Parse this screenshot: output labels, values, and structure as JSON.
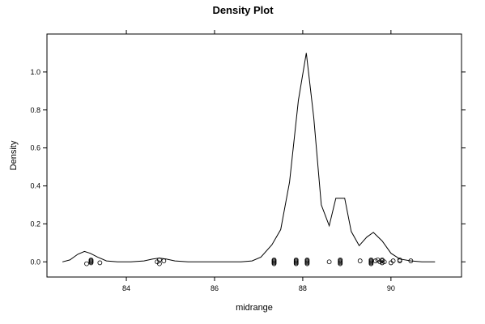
{
  "chart_data": {
    "type": "line",
    "title": "Density Plot",
    "xlabel": "midrange",
    "ylabel": "Density",
    "xlim": [
      82.2,
      91.6
    ],
    "ylim": [
      -0.08,
      1.2
    ],
    "x_ticks": [
      84,
      86,
      88,
      90
    ],
    "y_ticks": [
      0.0,
      0.2,
      0.4,
      0.6,
      0.8,
      1.0
    ],
    "x_tick_labels": [
      "84",
      "86",
      "88",
      "90"
    ],
    "y_tick_labels": [
      "0.0",
      "0.2",
      "0.4",
      "0.6",
      "0.8",
      "1.0"
    ],
    "grid": false,
    "line_color": "#000000",
    "series": [
      {
        "x": [
          82.55,
          82.72,
          82.9,
          83.05,
          83.18,
          83.35,
          83.55,
          83.8,
          84.1,
          84.4,
          84.6,
          84.75,
          84.9,
          85.1,
          85.4,
          85.8,
          86.2,
          86.6,
          86.85,
          87.05,
          87.3,
          87.5,
          87.7,
          87.9,
          88.08,
          88.25,
          88.42,
          88.6,
          88.75,
          88.95,
          89.1,
          89.28,
          89.45,
          89.6,
          89.8,
          90.0,
          90.2,
          90.45,
          90.7,
          91.0
        ],
        "y": [
          0.0,
          0.01,
          0.04,
          0.055,
          0.045,
          0.025,
          0.005,
          0.0,
          0.0,
          0.005,
          0.015,
          0.02,
          0.015,
          0.005,
          0.0,
          0.0,
          0.0,
          0.0,
          0.005,
          0.025,
          0.09,
          0.17,
          0.42,
          0.85,
          1.1,
          0.76,
          0.3,
          0.19,
          0.335,
          0.335,
          0.16,
          0.085,
          0.13,
          0.155,
          0.11,
          0.045,
          0.015,
          0.005,
          0.0,
          0.0
        ]
      }
    ],
    "rug_points": {
      "x": [
        83.1,
        83.2,
        83.2,
        83.2,
        83.2,
        83.4,
        84.7,
        84.75,
        84.75,
        84.85,
        87.35,
        87.35,
        87.35,
        87.35,
        87.35,
        87.85,
        87.85,
        87.85,
        87.85,
        87.85,
        88.1,
        88.1,
        88.1,
        88.1,
        88.1,
        88.6,
        88.85,
        88.85,
        88.85,
        88.85,
        88.85,
        89.3,
        89.55,
        89.55,
        89.55,
        89.55,
        89.55,
        89.65,
        89.7,
        89.75,
        89.8,
        89.8,
        89.8,
        89.85,
        90.0,
        90.05,
        90.2,
        90.2,
        90.45
      ],
      "y": [
        -0.01,
        0.0,
        -0.005,
        0.005,
        0.01,
        -0.005,
        0.0,
        -0.01,
        0.01,
        0.005,
        0.0,
        -0.01,
        0.01,
        -0.005,
        0.005,
        0.0,
        -0.01,
        0.01,
        -0.005,
        0.005,
        0.0,
        -0.01,
        0.01,
        -0.005,
        0.005,
        0.0,
        0.0,
        -0.01,
        0.01,
        -0.005,
        0.005,
        0.005,
        0.0,
        -0.01,
        0.01,
        -0.005,
        0.005,
        0.005,
        0.01,
        0.0,
        0.005,
        -0.005,
        0.01,
        0.0,
        -0.005,
        0.005,
        0.01,
        0.005,
        0.005
      ]
    }
  }
}
